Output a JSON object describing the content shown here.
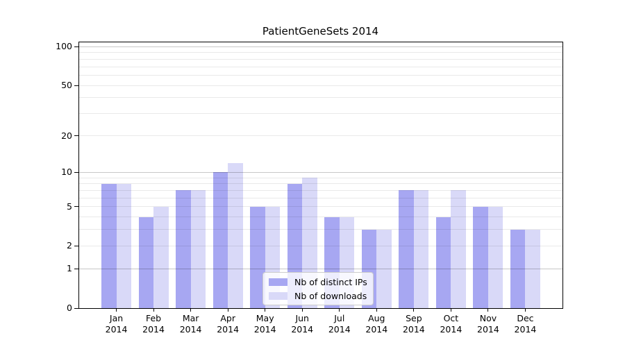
{
  "title": "PatientGeneSets 2014",
  "chart_data": {
    "type": "bar",
    "title": "PatientGeneSets 2014",
    "categories": [
      "Jan",
      "Feb",
      "Mar",
      "Apr",
      "May",
      "Jun",
      "Jul",
      "Aug",
      "Sep",
      "Oct",
      "Nov",
      "Dec"
    ],
    "x_year_label": "2014",
    "series": [
      {
        "name": "Nb of distinct IPs",
        "color": "#a7a7f2",
        "values": [
          8,
          4,
          7,
          10,
          5,
          8,
          4,
          3,
          7,
          4,
          5,
          3
        ]
      },
      {
        "name": "Nb of downloads",
        "color": "#d9d9f8",
        "values": [
          8,
          5,
          7,
          12,
          5,
          9,
          4,
          3,
          7,
          7,
          5,
          3
        ]
      }
    ],
    "y_axis": {
      "scale": "log1p",
      "tick_values": [
        0,
        1,
        2,
        5,
        10,
        20,
        50,
        100
      ],
      "major_gridlines": [
        1,
        10,
        100
      ],
      "minor_gridlines": [
        2,
        3,
        4,
        5,
        6,
        7,
        8,
        9,
        20,
        30,
        40,
        50,
        60,
        70,
        80,
        90
      ],
      "ymax": 108.2,
      "ymin": 0
    },
    "legend": {
      "position": "lower center",
      "entries": [
        "Nb of distinct IPs",
        "Nb of downloads"
      ]
    },
    "grid": true,
    "xlabel": "",
    "ylabel": ""
  },
  "colors": {
    "series_distinct_ips": "#a7a7f2",
    "series_downloads": "#d9d9f8",
    "grid_major": "#c7c7c7",
    "grid_minor": "#ececec",
    "axis_frame": "#000000",
    "legend_border": "#cccccc"
  }
}
